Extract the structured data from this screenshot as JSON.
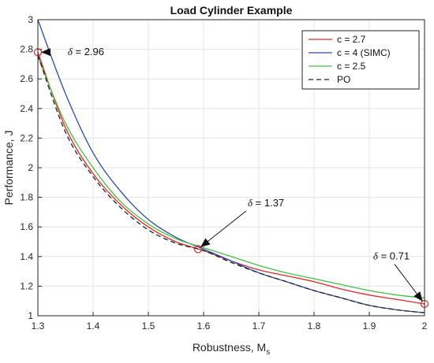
{
  "chart_data": {
    "type": "line",
    "title": "Load Cylinder Example",
    "xlabel": "Robustness, M",
    "xlabel_sub": "s",
    "ylabel": "Performance, J",
    "xlim": [
      1.3,
      2.0
    ],
    "ylim": [
      1.0,
      3.0
    ],
    "xticks": [
      1.3,
      1.4,
      1.5,
      1.6,
      1.7,
      1.8,
      1.9,
      2.0
    ],
    "xtick_labels": [
      "1.3",
      "1.4",
      "1.5",
      "1.6",
      "1.7",
      "1.8",
      "1.9",
      "2"
    ],
    "yticks": [
      1.0,
      1.2,
      1.4,
      1.6,
      1.8,
      2.0,
      2.2,
      2.4,
      2.6,
      2.8,
      3.0
    ],
    "ytick_labels": [
      "1",
      "1.2",
      "1.4",
      "1.6",
      "1.8",
      "2",
      "2.2",
      "2.4",
      "2.6",
      "2.8",
      "3"
    ],
    "grid": true,
    "legend_position": "top-right",
    "x": [
      1.3,
      1.35,
      1.4,
      1.45,
      1.5,
      1.55,
      1.6,
      1.65,
      1.7,
      1.75,
      1.8,
      1.85,
      1.9,
      1.95,
      2.0
    ],
    "series": [
      {
        "name": "c = 2.7",
        "color": "#e8262a",
        "dash": "solid",
        "values": [
          2.78,
          2.27,
          1.96,
          1.75,
          1.6,
          1.5,
          1.44,
          1.37,
          1.31,
          1.27,
          1.23,
          1.18,
          1.14,
          1.11,
          1.08
        ]
      },
      {
        "name": "c = 4 (SIMC)",
        "color": "#2a4bb6",
        "dash": "solid",
        "values": [
          3.0,
          2.5,
          2.1,
          1.84,
          1.65,
          1.53,
          1.45,
          1.37,
          1.29,
          1.23,
          1.17,
          1.12,
          1.07,
          1.04,
          1.02
        ]
      },
      {
        "name": "c = 2.5",
        "color": "#42c43b",
        "dash": "solid",
        "values": [
          2.75,
          2.3,
          2.0,
          1.77,
          1.62,
          1.52,
          1.46,
          1.4,
          1.34,
          1.29,
          1.25,
          1.21,
          1.17,
          1.14,
          1.12
        ]
      },
      {
        "name": "PO",
        "color": "#222222",
        "dash": "dashed",
        "values": [
          2.76,
          2.24,
          1.94,
          1.73,
          1.58,
          1.49,
          1.44,
          1.36,
          1.29,
          1.23,
          1.17,
          1.12,
          1.07,
          1.04,
          1.02
        ]
      }
    ],
    "markers": [
      {
        "x": 1.3,
        "y": 2.78,
        "color": "#e8262a"
      },
      {
        "x": 1.59,
        "y": 1.45,
        "color": "#e8262a"
      },
      {
        "x": 2.0,
        "y": 1.08,
        "color": "#e8262a"
      }
    ],
    "annotations": [
      {
        "symbol": "δ",
        "text": " = 2.96",
        "tx": 1.42,
        "ty": 2.76,
        "ax": 1.3,
        "ay": 2.78,
        "anchor": "end"
      },
      {
        "symbol": "δ",
        "text": " = 1.37",
        "tx": 1.68,
        "ty": 1.74,
        "ax": 1.59,
        "ay": 1.45,
        "anchor": "start"
      },
      {
        "symbol": "δ",
        "text": " = 0.71",
        "tx": 1.94,
        "ty": 1.38,
        "ax": 2.0,
        "ay": 1.08,
        "anchor": "middle"
      }
    ]
  }
}
